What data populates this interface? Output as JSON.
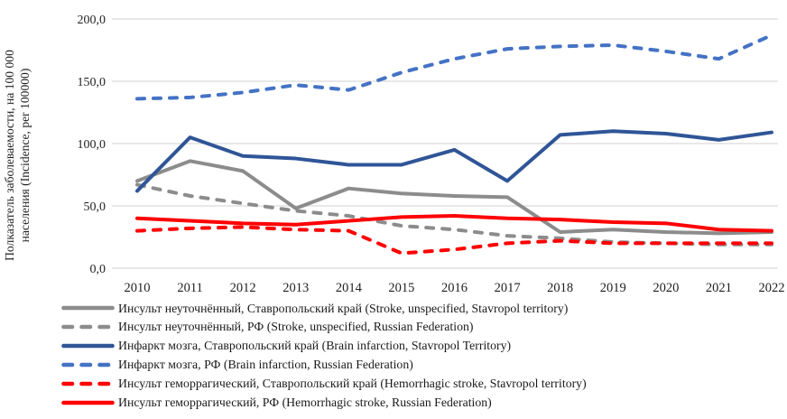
{
  "chart_data": {
    "type": "line",
    "title": "",
    "ylabel_line1": "Полказатель заболеваемости, на 100 000",
    "ylabel_line2": "населения (Incidence, per 100000)",
    "x": [
      "2010",
      "2011",
      "2012",
      "2013",
      "2014",
      "2015",
      "2016",
      "2017",
      "2018",
      "2019",
      "2020",
      "2021",
      "2022"
    ],
    "ylim": [
      0,
      200
    ],
    "grid": true,
    "legend_position": "bottom",
    "yticks": [
      {
        "label": "200,0",
        "value": 200
      },
      {
        "label": "150,0",
        "value": 150
      },
      {
        "label": "100,0",
        "value": 100
      },
      {
        "label": "50,0",
        "value": 50
      },
      {
        "label": "0,0",
        "value": 0
      }
    ],
    "colors": {
      "gray": "#8C8C8C",
      "blue_dark": "#2F5597",
      "blue_light": "#4472C4",
      "red": "#FF0000",
      "gridline": "#D9D9D9"
    },
    "series": [
      {
        "name": "stroke-unspecified-stavropol",
        "label": "Инсульт неуточнённый, Ставропольский край (Stroke, unspecified, Stavropol territory)",
        "color": "#8C8C8C",
        "dashed": false,
        "values": [
          70,
          86,
          78,
          48,
          64,
          60,
          58,
          57,
          29,
          31,
          29,
          28,
          29
        ]
      },
      {
        "name": "stroke-unspecified-rf",
        "label": "Инсульт неуточнённый, РФ (Stroke, unspecified, Russian Federation)",
        "color": "#8C8C8C",
        "dashed": true,
        "values": [
          67,
          58,
          52,
          46,
          42,
          34,
          31,
          26,
          24,
          21,
          20,
          19,
          19
        ]
      },
      {
        "name": "brain-infarction-stavropol",
        "label": "Инфаркт мозга, Ставропольский край (Brain infarction, Stavropol Territory)",
        "color": "#2F5597",
        "dashed": false,
        "values": [
          62,
          105,
          90,
          88,
          83,
          83,
          95,
          70,
          107,
          110,
          108,
          103,
          109
        ]
      },
      {
        "name": "brain-infarction-rf",
        "label": "Инфаркт мозга, РФ (Brain infarction, Russian Federation)",
        "color": "#4472C4",
        "dashed": true,
        "values": [
          136,
          137,
          141,
          147,
          143,
          157,
          168,
          176,
          178,
          179,
          174,
          168,
          187
        ]
      },
      {
        "name": "hemorrhagic-stroke-stavropol",
        "label": "Инсульт геморрагический, Ставропольский край (Hemorrhagic stroke, Stavropol territory)",
        "color": "#FF0000",
        "dashed": true,
        "values": [
          30,
          32,
          33,
          31,
          30,
          12,
          15,
          20,
          22,
          20,
          20,
          20,
          20
        ]
      },
      {
        "name": "hemorrhagic-stroke-rf",
        "label": "Инсульт геморрагический, РФ (Hemorrhagic stroke, Russian Federation)",
        "color": "#FF0000",
        "dashed": false,
        "values": [
          40,
          38,
          36,
          35,
          38,
          41,
          42,
          40,
          39,
          37,
          36,
          31,
          30
        ]
      }
    ]
  }
}
